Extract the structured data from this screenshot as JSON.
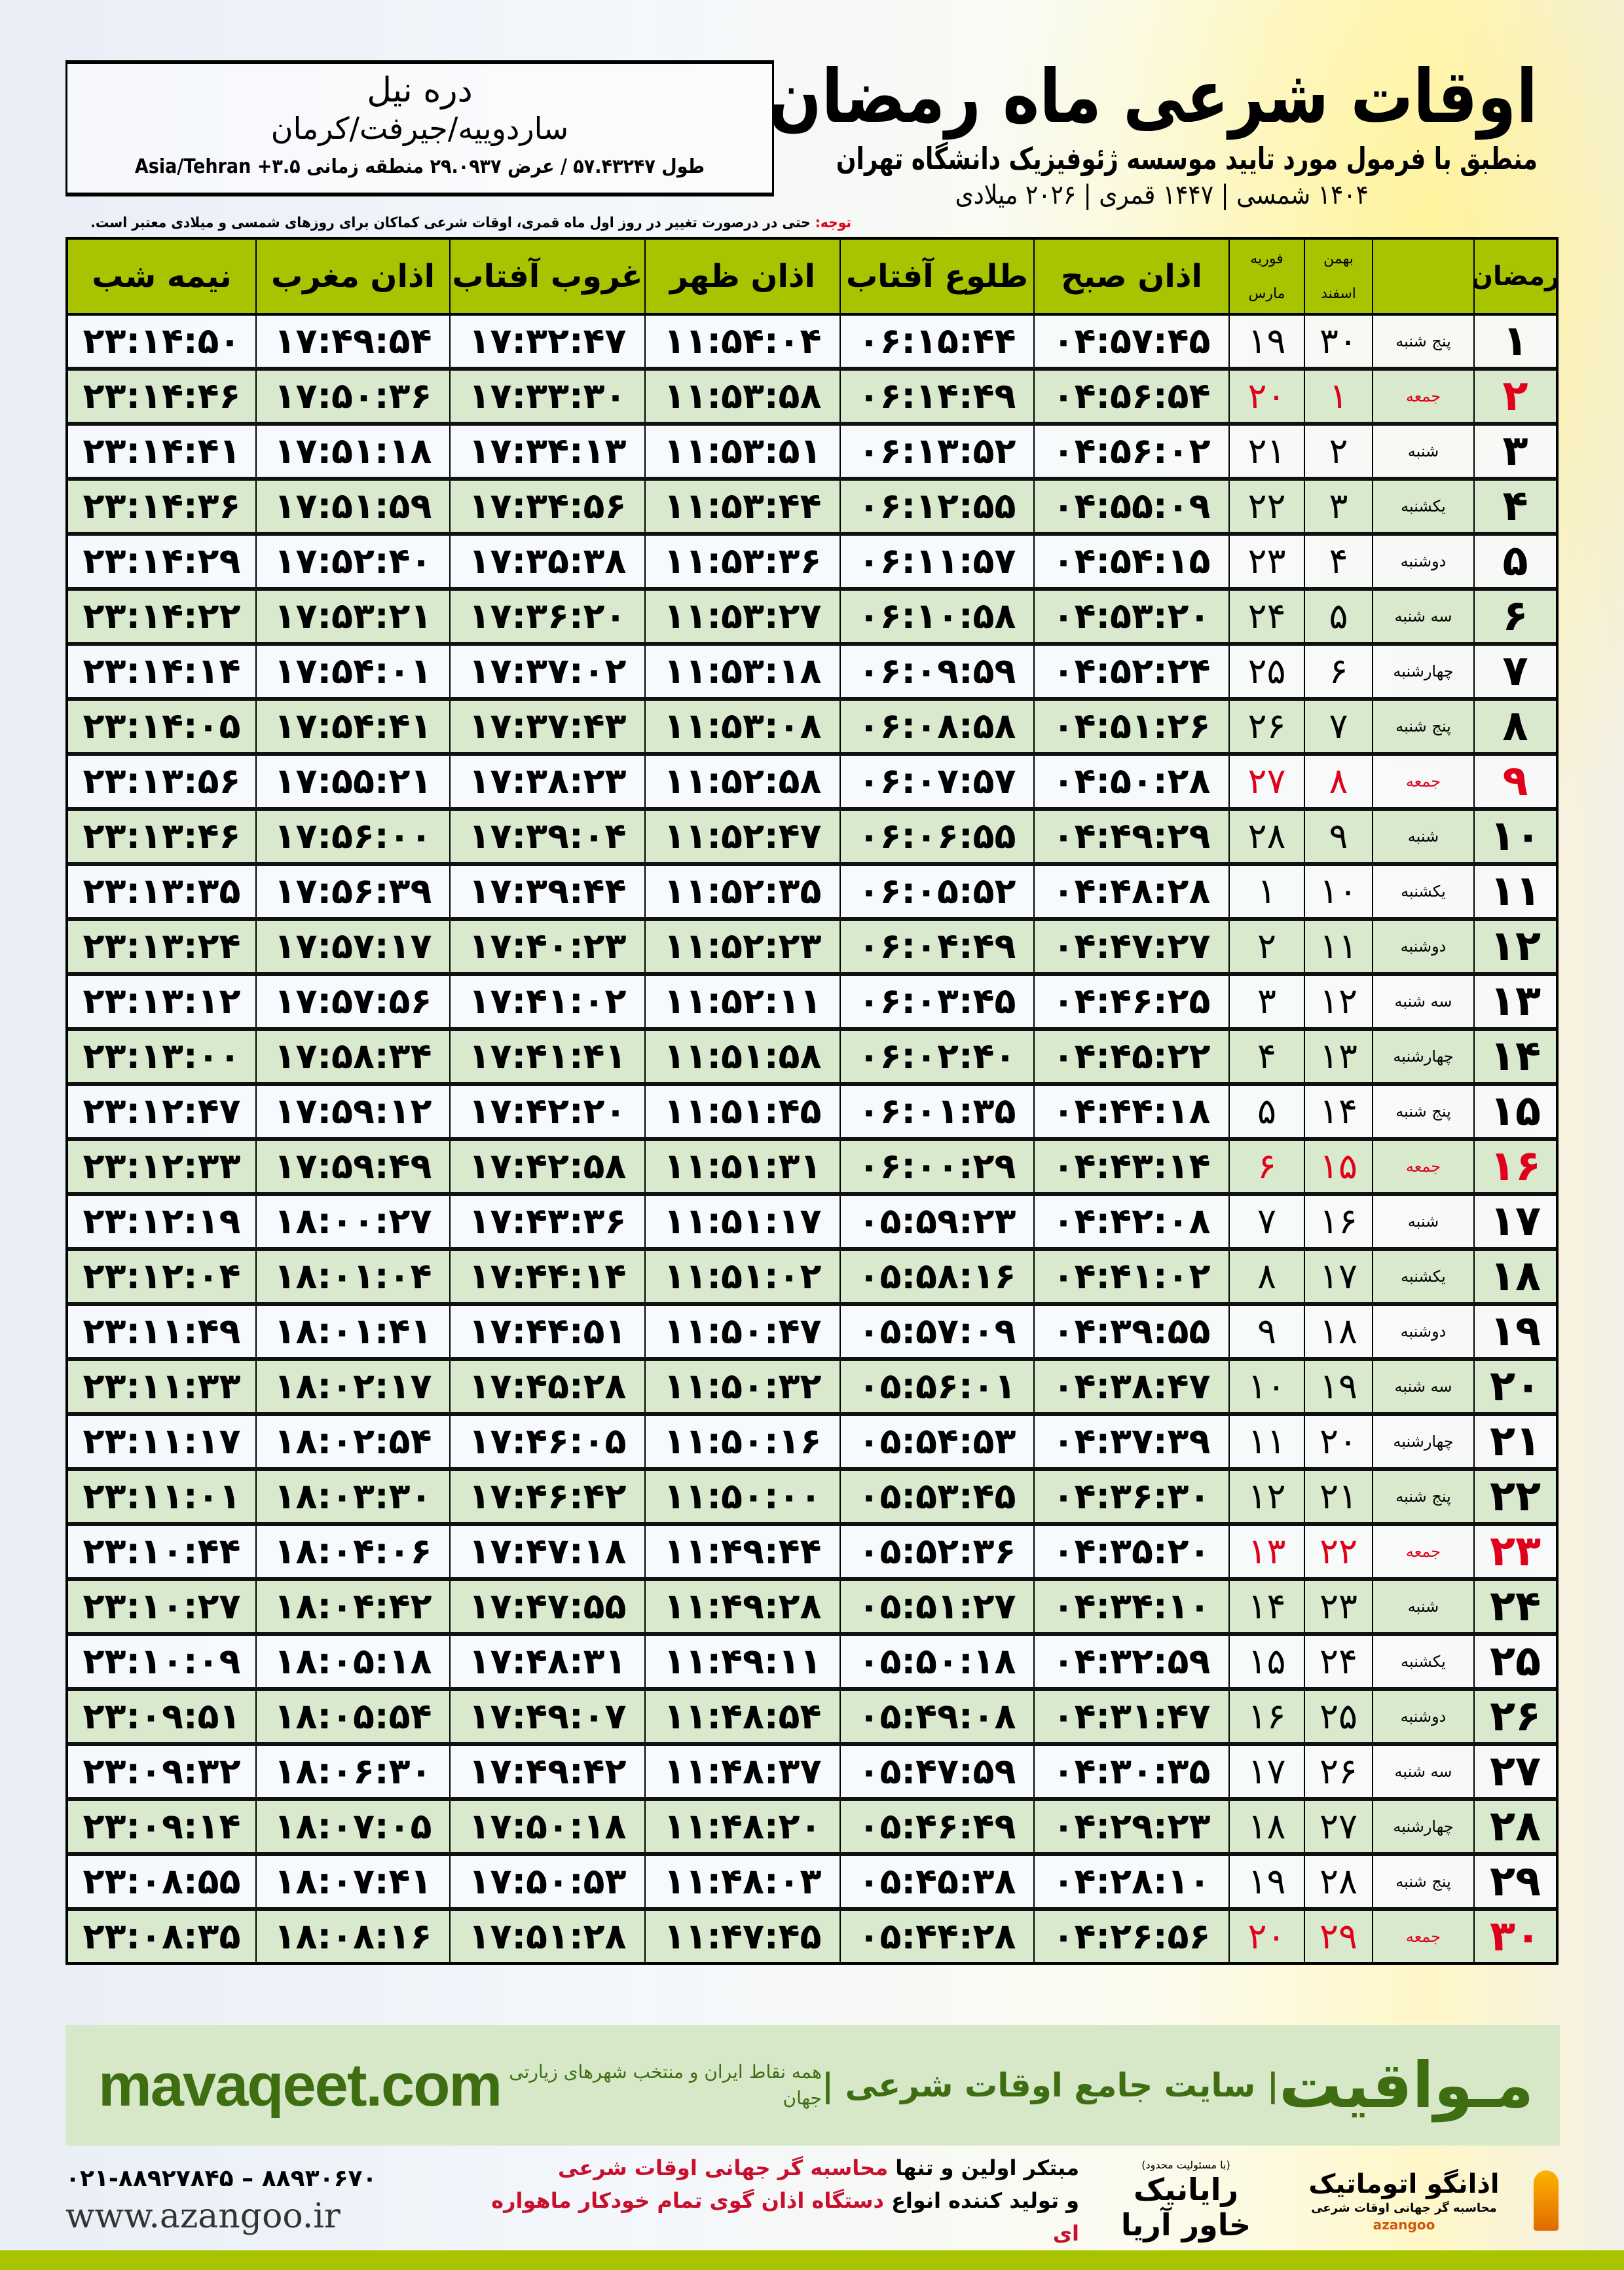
{
  "header": {
    "title": "اوقات شرعی ماه رمضان",
    "subtitle": "منطبق با فرمول مورد تایید موسسه ژئوفیزیک دانشگاه تهران",
    "years": "۱۴۰۴ شمسی | ۱۴۴۷ قمری | ۲۰۲۶ میلادی"
  },
  "location": {
    "city": "دره نیل",
    "region": "ساردوییه/جیرفت/کرمان",
    "coords": "طول ۵۷.۴۳۲۴۷ / عرض ۲۹.۰۹۳۷ منطقه زمانی ۳.۵+ Asia/Tehran"
  },
  "note": {
    "label": "توجه:",
    "text": " حتی در درصورت تغییر در روز اول ماه قمری، اوقات شرعی کماکان برای روزهای شمسی و میلادی معتبر است."
  },
  "table": {
    "headers": {
      "ramadan": "رمضان",
      "shamsi_top": "بهمن",
      "shamsi_bottom": "اسفند",
      "miladi_top": "فوریه",
      "miladi_bottom": "مارس",
      "sobh": "اذان صبح",
      "tolu": "طلوع آفتاب",
      "zohr": "اذان ظهر",
      "ghorub": "غروب آفتاب",
      "maghreb": "اذان مغرب",
      "nime": "نیمه شب"
    },
    "friday_color": "#e0001b",
    "header_color": "#a8c400",
    "rows": [
      {
        "r": "۱",
        "d": "پنج شنبه",
        "s": "۳۰",
        "m": "۱۹",
        "t": [
          "۰۴:۵۷:۴۵",
          "۰۶:۱۵:۴۴",
          "۱۱:۵۴:۰۴",
          "۱۷:۳۲:۴۷",
          "۱۷:۴۹:۵۴",
          "۲۳:۱۴:۵۰"
        ]
      },
      {
        "r": "۲",
        "d": "جمعه",
        "s": "۱",
        "m": "۲۰",
        "fri": true,
        "t": [
          "۰۴:۵۶:۵۴",
          "۰۶:۱۴:۴۹",
          "۱۱:۵۳:۵۸",
          "۱۷:۳۳:۳۰",
          "۱۷:۵۰:۳۶",
          "۲۳:۱۴:۴۶"
        ]
      },
      {
        "r": "۳",
        "d": "شنبه",
        "s": "۲",
        "m": "۲۱",
        "t": [
          "۰۴:۵۶:۰۲",
          "۰۶:۱۳:۵۲",
          "۱۱:۵۳:۵۱",
          "۱۷:۳۴:۱۳",
          "۱۷:۵۱:۱۸",
          "۲۳:۱۴:۴۱"
        ]
      },
      {
        "r": "۴",
        "d": "یکشنبه",
        "s": "۳",
        "m": "۲۲",
        "t": [
          "۰۴:۵۵:۰۹",
          "۰۶:۱۲:۵۵",
          "۱۱:۵۳:۴۴",
          "۱۷:۳۴:۵۶",
          "۱۷:۵۱:۵۹",
          "۲۳:۱۴:۳۶"
        ]
      },
      {
        "r": "۵",
        "d": "دوشنبه",
        "s": "۴",
        "m": "۲۳",
        "t": [
          "۰۴:۵۴:۱۵",
          "۰۶:۱۱:۵۷",
          "۱۱:۵۳:۳۶",
          "۱۷:۳۵:۳۸",
          "۱۷:۵۲:۴۰",
          "۲۳:۱۴:۲۹"
        ]
      },
      {
        "r": "۶",
        "d": "سه شنبه",
        "s": "۵",
        "m": "۲۴",
        "t": [
          "۰۴:۵۳:۲۰",
          "۰۶:۱۰:۵۸",
          "۱۱:۵۳:۲۷",
          "۱۷:۳۶:۲۰",
          "۱۷:۵۳:۲۱",
          "۲۳:۱۴:۲۲"
        ]
      },
      {
        "r": "۷",
        "d": "چهارشنبه",
        "s": "۶",
        "m": "۲۵",
        "t": [
          "۰۴:۵۲:۲۴",
          "۰۶:۰۹:۵۹",
          "۱۱:۵۳:۱۸",
          "۱۷:۳۷:۰۲",
          "۱۷:۵۴:۰۱",
          "۲۳:۱۴:۱۴"
        ]
      },
      {
        "r": "۸",
        "d": "پنج شنبه",
        "s": "۷",
        "m": "۲۶",
        "t": [
          "۰۴:۵۱:۲۶",
          "۰۶:۰۸:۵۸",
          "۱۱:۵۳:۰۸",
          "۱۷:۳۷:۴۳",
          "۱۷:۵۴:۴۱",
          "۲۳:۱۴:۰۵"
        ]
      },
      {
        "r": "۹",
        "d": "جمعه",
        "s": "۸",
        "m": "۲۷",
        "fri": true,
        "t": [
          "۰۴:۵۰:۲۸",
          "۰۶:۰۷:۵۷",
          "۱۱:۵۲:۵۸",
          "۱۷:۳۸:۲۳",
          "۱۷:۵۵:۲۱",
          "۲۳:۱۳:۵۶"
        ]
      },
      {
        "r": "۱۰",
        "d": "شنبه",
        "s": "۹",
        "m": "۲۸",
        "t": [
          "۰۴:۴۹:۲۹",
          "۰۶:۰۶:۵۵",
          "۱۱:۵۲:۴۷",
          "۱۷:۳۹:۰۴",
          "۱۷:۵۶:۰۰",
          "۲۳:۱۳:۴۶"
        ]
      },
      {
        "r": "۱۱",
        "d": "یکشنبه",
        "s": "۱۰",
        "m": "۱",
        "t": [
          "۰۴:۴۸:۲۸",
          "۰۶:۰۵:۵۲",
          "۱۱:۵۲:۳۵",
          "۱۷:۳۹:۴۴",
          "۱۷:۵۶:۳۹",
          "۲۳:۱۳:۳۵"
        ]
      },
      {
        "r": "۱۲",
        "d": "دوشنبه",
        "s": "۱۱",
        "m": "۲",
        "t": [
          "۰۴:۴۷:۲۷",
          "۰۶:۰۴:۴۹",
          "۱۱:۵۲:۲۳",
          "۱۷:۴۰:۲۳",
          "۱۷:۵۷:۱۷",
          "۲۳:۱۳:۲۴"
        ]
      },
      {
        "r": "۱۳",
        "d": "سه شنبه",
        "s": "۱۲",
        "m": "۳",
        "t": [
          "۰۴:۴۶:۲۵",
          "۰۶:۰۳:۴۵",
          "۱۱:۵۲:۱۱",
          "۱۷:۴۱:۰۲",
          "۱۷:۵۷:۵۶",
          "۲۳:۱۳:۱۲"
        ]
      },
      {
        "r": "۱۴",
        "d": "چهارشنبه",
        "s": "۱۳",
        "m": "۴",
        "t": [
          "۰۴:۴۵:۲۲",
          "۰۶:۰۲:۴۰",
          "۱۱:۵۱:۵۸",
          "۱۷:۴۱:۴۱",
          "۱۷:۵۸:۳۴",
          "۲۳:۱۳:۰۰"
        ]
      },
      {
        "r": "۱۵",
        "d": "پنج شنبه",
        "s": "۱۴",
        "m": "۵",
        "t": [
          "۰۴:۴۴:۱۸",
          "۰۶:۰۱:۳۵",
          "۱۱:۵۱:۴۵",
          "۱۷:۴۲:۲۰",
          "۱۷:۵۹:۱۲",
          "۲۳:۱۲:۴۷"
        ]
      },
      {
        "r": "۱۶",
        "d": "جمعه",
        "s": "۱۵",
        "m": "۶",
        "fri": true,
        "t": [
          "۰۴:۴۳:۱۴",
          "۰۶:۰۰:۲۹",
          "۱۱:۵۱:۳۱",
          "۱۷:۴۲:۵۸",
          "۱۷:۵۹:۴۹",
          "۲۳:۱۲:۳۳"
        ]
      },
      {
        "r": "۱۷",
        "d": "شنبه",
        "s": "۱۶",
        "m": "۷",
        "t": [
          "۰۴:۴۲:۰۸",
          "۰۵:۵۹:۲۳",
          "۱۱:۵۱:۱۷",
          "۱۷:۴۳:۳۶",
          "۱۸:۰۰:۲۷",
          "۲۳:۱۲:۱۹"
        ]
      },
      {
        "r": "۱۸",
        "d": "یکشنبه",
        "s": "۱۷",
        "m": "۸",
        "t": [
          "۰۴:۴۱:۰۲",
          "۰۵:۵۸:۱۶",
          "۱۱:۵۱:۰۲",
          "۱۷:۴۴:۱۴",
          "۱۸:۰۱:۰۴",
          "۲۳:۱۲:۰۴"
        ]
      },
      {
        "r": "۱۹",
        "d": "دوشنبه",
        "s": "۱۸",
        "m": "۹",
        "t": [
          "۰۴:۳۹:۵۵",
          "۰۵:۵۷:۰۹",
          "۱۱:۵۰:۴۷",
          "۱۷:۴۴:۵۱",
          "۱۸:۰۱:۴۱",
          "۲۳:۱۱:۴۹"
        ]
      },
      {
        "r": "۲۰",
        "d": "سه شنبه",
        "s": "۱۹",
        "m": "۱۰",
        "t": [
          "۰۴:۳۸:۴۷",
          "۰۵:۵۶:۰۱",
          "۱۱:۵۰:۳۲",
          "۱۷:۴۵:۲۸",
          "۱۸:۰۲:۱۷",
          "۲۳:۱۱:۳۳"
        ]
      },
      {
        "r": "۲۱",
        "d": "چهارشنبه",
        "s": "۲۰",
        "m": "۱۱",
        "t": [
          "۰۴:۳۷:۳۹",
          "۰۵:۵۴:۵۳",
          "۱۱:۵۰:۱۶",
          "۱۷:۴۶:۰۵",
          "۱۸:۰۲:۵۴",
          "۲۳:۱۱:۱۷"
        ]
      },
      {
        "r": "۲۲",
        "d": "پنج شنبه",
        "s": "۲۱",
        "m": "۱۲",
        "t": [
          "۰۴:۳۶:۳۰",
          "۰۵:۵۳:۴۵",
          "۱۱:۵۰:۰۰",
          "۱۷:۴۶:۴۲",
          "۱۸:۰۳:۳۰",
          "۲۳:۱۱:۰۱"
        ]
      },
      {
        "r": "۲۳",
        "d": "جمعه",
        "s": "۲۲",
        "m": "۱۳",
        "fri": true,
        "t": [
          "۰۴:۳۵:۲۰",
          "۰۵:۵۲:۳۶",
          "۱۱:۴۹:۴۴",
          "۱۷:۴۷:۱۸",
          "۱۸:۰۴:۰۶",
          "۲۳:۱۰:۴۴"
        ]
      },
      {
        "r": "۲۴",
        "d": "شنبه",
        "s": "۲۳",
        "m": "۱۴",
        "t": [
          "۰۴:۳۴:۱۰",
          "۰۵:۵۱:۲۷",
          "۱۱:۴۹:۲۸",
          "۱۷:۴۷:۵۵",
          "۱۸:۰۴:۴۲",
          "۲۳:۱۰:۲۷"
        ]
      },
      {
        "r": "۲۵",
        "d": "یکشنبه",
        "s": "۲۴",
        "m": "۱۵",
        "t": [
          "۰۴:۳۲:۵۹",
          "۰۵:۵۰:۱۸",
          "۱۱:۴۹:۱۱",
          "۱۷:۴۸:۳۱",
          "۱۸:۰۵:۱۸",
          "۲۳:۱۰:۰۹"
        ]
      },
      {
        "r": "۲۶",
        "d": "دوشنبه",
        "s": "۲۵",
        "m": "۱۶",
        "t": [
          "۰۴:۳۱:۴۷",
          "۰۵:۴۹:۰۸",
          "۱۱:۴۸:۵۴",
          "۱۷:۴۹:۰۷",
          "۱۸:۰۵:۵۴",
          "۲۳:۰۹:۵۱"
        ]
      },
      {
        "r": "۲۷",
        "d": "سه شنبه",
        "s": "۲۶",
        "m": "۱۷",
        "t": [
          "۰۴:۳۰:۳۵",
          "۰۵:۴۷:۵۹",
          "۱۱:۴۸:۳۷",
          "۱۷:۴۹:۴۲",
          "۱۸:۰۶:۳۰",
          "۲۳:۰۹:۳۲"
        ]
      },
      {
        "r": "۲۸",
        "d": "چهارشنبه",
        "s": "۲۷",
        "m": "۱۸",
        "t": [
          "۰۴:۲۹:۲۳",
          "۰۵:۴۶:۴۹",
          "۱۱:۴۸:۲۰",
          "۱۷:۵۰:۱۸",
          "۱۸:۰۷:۰۵",
          "۲۳:۰۹:۱۴"
        ]
      },
      {
        "r": "۲۹",
        "d": "پنج شنبه",
        "s": "۲۸",
        "m": "۱۹",
        "t": [
          "۰۴:۲۸:۱۰",
          "۰۵:۴۵:۳۸",
          "۱۱:۴۸:۰۳",
          "۱۷:۵۰:۵۳",
          "۱۸:۰۷:۴۱",
          "۲۳:۰۸:۵۵"
        ]
      },
      {
        "r": "۳۰",
        "d": "جمعه",
        "s": "۲۹",
        "m": "۲۰",
        "fri": true,
        "t": [
          "۰۴:۲۶:۵۶",
          "۰۵:۴۴:۲۸",
          "۱۱:۴۷:۴۵",
          "۱۷:۵۱:۲۸",
          "۱۸:۰۸:۱۶",
          "۲۳:۰۸:۳۵"
        ]
      }
    ]
  },
  "banner": {
    "brand": "مـواقیت",
    "tagline": "| سایت جامع اوقات شرعی |",
    "tagline2": "همه نقاط ایران و منتخب شهرهای زیارتی جهان",
    "site": "mavaqeet.com",
    "color": "#3f6e12"
  },
  "footer": {
    "phone": "۰۲۱-۸۸۹۲۷۸۴۵ – ۸۸۹۳۰۶۷۰",
    "website": "www.azangoo.ir",
    "promo1_a": "مبتکر اولین و تنها ",
    "promo1_b": "محاسبه گر جهانی اوقات شرعی",
    "promo2_a": "و تولید کننده انواع ",
    "promo2_b": "دستگاه اذان گوی تمام خودکار ماهواره ای",
    "logo_rayanik_note": "(با مسئولیت محدود)",
    "logo_rayanik": "رایانیک خاور آریا",
    "logo_azangoo": "اذانگو اتوماتیک",
    "logo_azangoo_sub": "محاسبه گر جهانی اوقات شرعی",
    "logo_azangoo_latin": "azangoo"
  }
}
